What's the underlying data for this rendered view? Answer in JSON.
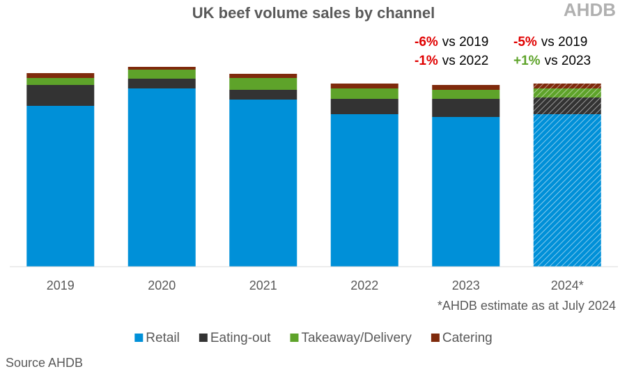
{
  "chart_data": {
    "type": "stacked_bar",
    "title": "UK beef volume sales by channel",
    "logo": "AHDB",
    "categories": [
      "2019",
      "2020",
      "2021",
      "2022",
      "2023",
      "2024*"
    ],
    "series": [
      {
        "name": "Retail",
        "color": "#0090d8",
        "values": [
          231,
          256,
          240,
          219,
          215,
          219
        ]
      },
      {
        "name": "Eating-out",
        "color": "#333333",
        "values": [
          30,
          14,
          14,
          22,
          26,
          24
        ]
      },
      {
        "name": "Takeaway/Delivery",
        "color": "#5ea32a",
        "values": [
          10,
          13,
          17,
          15,
          13,
          13
        ]
      },
      {
        "name": "Catering",
        "color": "#7f2a0c",
        "values": [
          7,
          4,
          6,
          7,
          7,
          7
        ]
      }
    ],
    "hatched": [
      false,
      false,
      false,
      false,
      false,
      true
    ],
    "ylim": [
      0,
      300
    ],
    "annotations": [
      {
        "change": "-6%",
        "text": "vs 2019",
        "color": "#e00000"
      },
      {
        "change": "-5%",
        "text": "vs 2019",
        "color": "#e00000"
      },
      {
        "change": "-1%",
        "text": "vs 2022",
        "color": "#e00000"
      },
      {
        "change": "+1%",
        "text": "vs 2023",
        "color": "#5ea32a"
      }
    ],
    "note": "*AHDB estimate as at July 2024",
    "source": "Source AHDB"
  }
}
